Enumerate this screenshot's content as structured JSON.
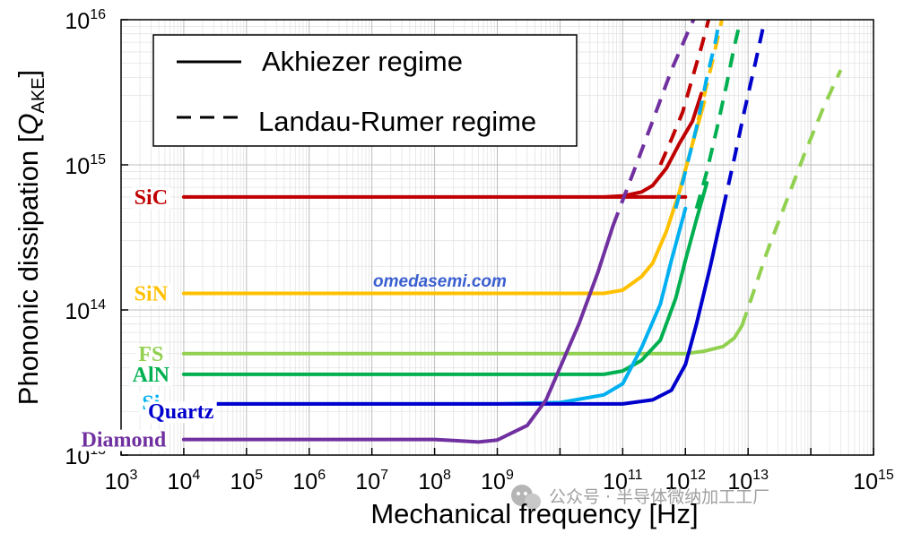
{
  "chart_data": {
    "type": "line",
    "title": "",
    "xlabel": "Mechanical frequency [Hz]",
    "ylabel_main": "Phononic dissipation [",
    "ylabel_q": "Q",
    "ylabel_sub": "AKE",
    "ylabel_close": "]",
    "x_scale": "log",
    "y_scale": "log",
    "xlim": [
      1000,
      1000000000000000
    ],
    "ylim": [
      10000000000000,
      10000000000000000
    ],
    "grid": true,
    "x_ticks": [
      {
        "value": 1000,
        "base": "10",
        "exp": "3"
      },
      {
        "value": 10000,
        "base": "10",
        "exp": "4"
      },
      {
        "value": 100000,
        "base": "10",
        "exp": "5"
      },
      {
        "value": 1000000,
        "base": "10",
        "exp": "6"
      },
      {
        "value": 10000000,
        "base": "10",
        "exp": "7"
      },
      {
        "value": 100000000,
        "base": "10",
        "exp": "8"
      },
      {
        "value": 1000000000,
        "base": "10",
        "exp": "9"
      },
      {
        "value": 100000000000,
        "base": "10",
        "exp": "11"
      },
      {
        "value": 1000000000000,
        "base": "10",
        "exp": "12"
      },
      {
        "value": 10000000000000,
        "base": "10",
        "exp": "13"
      },
      {
        "value": 1000000000000000,
        "base": "10",
        "exp": "15"
      }
    ],
    "y_ticks": [
      {
        "value": 10000000000000,
        "base": "10",
        "exp": "13"
      },
      {
        "value": 100000000000000,
        "base": "10",
        "exp": "14"
      },
      {
        "value": 1000000000000000,
        "base": "10",
        "exp": "15"
      },
      {
        "value": 10000000000000000,
        "base": "10",
        "exp": "16"
      }
    ],
    "legend": {
      "position": "top-left",
      "entries": [
        {
          "label": "Akhiezer regime",
          "style": "solid"
        },
        {
          "label": "Landau-Rumer regime",
          "style": "dashed"
        }
      ]
    },
    "series": [
      {
        "name": "SiC",
        "color": "#c00000",
        "label_at": {
          "x": 3000,
          "y": 600000000000000
        },
        "akhiezer": [
          [
            10000,
            600000000000000
          ],
          [
            1000000,
            600000000000000
          ],
          [
            100000000,
            600000000000000
          ],
          [
            1000000000,
            600000000000000
          ],
          [
            1000000000000,
            600000000000000
          ],
          [
            10000000000,
            600000000000000
          ],
          [
            50000000000,
            600000000000000
          ],
          [
            100000000000,
            610000000000000
          ],
          [
            200000000000,
            650000000000000
          ],
          [
            300000000000,
            720000000000000
          ],
          [
            500000000000,
            950000000000000
          ],
          [
            800000000000,
            1400000000000000
          ],
          [
            1300000000000,
            2000000000000000
          ],
          [
            1800000000000,
            3100000000000000
          ]
        ],
        "landau": [
          [
            400000000000,
            1000000000000000
          ],
          [
            600000000000,
            1500000000000000
          ],
          [
            900000000000,
            2300000000000000
          ],
          [
            1300000000000,
            4000000000000000
          ],
          [
            1800000000000,
            6500000000000000
          ],
          [
            2200000000000,
            9000000000000000
          ],
          [
            2600000000000,
            12000000000000000
          ]
        ]
      },
      {
        "name": "SiN",
        "color": "#ffc000",
        "label_at": {
          "x": 3000,
          "y": 130000000000000
        },
        "akhiezer": [
          [
            10000,
            130000000000000
          ],
          [
            1000000,
            130000000000000
          ],
          [
            100000000,
            130000000000000
          ],
          [
            10000000000,
            130000000000000
          ],
          [
            50000000000,
            130000000000000
          ],
          [
            100000000000,
            137000000000000
          ],
          [
            200000000000,
            170000000000000
          ],
          [
            300000000000,
            210000000000000
          ],
          [
            500000000000,
            350000000000000
          ],
          [
            800000000000,
            650000000000000
          ],
          [
            1300000000000,
            1400000000000000
          ],
          [
            2000000000000,
            2700000000000000
          ]
        ],
        "landau": [
          [
            1300000000000,
            1400000000000000
          ],
          [
            1800000000000,
            2500000000000000
          ],
          [
            2500000000000,
            4500000000000000
          ],
          [
            3400000000000,
            8000000000000000
          ],
          [
            4200000000000,
            12000000000000000
          ]
        ]
      },
      {
        "name": "FS",
        "color": "#92d050",
        "label_at": {
          "x": 3000,
          "y": 50000000000000
        },
        "akhiezer": [
          [
            10000,
            50000000000000
          ],
          [
            1000000,
            50000000000000
          ],
          [
            100000000,
            50000000000000
          ],
          [
            10000000000,
            50000000000000
          ],
          [
            100000000000,
            50000000000000
          ],
          [
            1000000000000,
            50000000000000
          ],
          [
            2000000000000,
            52000000000000
          ],
          [
            4000000000000,
            56000000000000
          ],
          [
            6000000000000,
            64000000000000
          ],
          [
            8000000000000,
            78000000000000
          ]
        ],
        "landau": [
          [
            8000000000000,
            78000000000000
          ],
          [
            12000000000000,
            130000000000000
          ],
          [
            20000000000000,
            250000000000000
          ],
          [
            40000000000000,
            550000000000000
          ],
          [
            80000000000000,
            1200000000000000
          ],
          [
            160000000000000,
            2500000000000000
          ],
          [
            300000000000000,
            4500000000000000
          ]
        ]
      },
      {
        "name": "AlN",
        "color": "#00b050",
        "label_at": {
          "x": 3000,
          "y": 36000000000000
        },
        "akhiezer": [
          [
            10000,
            36000000000000
          ],
          [
            1000000,
            36000000000000
          ],
          [
            100000000,
            36000000000000
          ],
          [
            10000000000,
            36000000000000
          ],
          [
            50000000000,
            36000000000000
          ],
          [
            100000000000,
            38000000000000
          ],
          [
            200000000000,
            45000000000000
          ],
          [
            400000000000,
            62000000000000
          ],
          [
            700000000000,
            120000000000000
          ],
          [
            1000000000000,
            220000000000000
          ],
          [
            1500000000000,
            420000000000000
          ],
          [
            2200000000000,
            750000000000000
          ]
        ],
        "landau": [
          [
            1500000000000,
            500000000000000
          ],
          [
            2200000000000,
            900000000000000
          ],
          [
            3200000000000,
            1800000000000000
          ],
          [
            4500000000000,
            3500000000000000
          ],
          [
            6000000000000,
            6500000000000000
          ],
          [
            8000000000000,
            11000000000000000
          ]
        ]
      },
      {
        "name": "Si",
        "color": "#00b0f0",
        "label_at": {
          "x": 3000,
          "y": 23000000000000
        },
        "akhiezer": [
          [
            10000,
            22500000000000
          ],
          [
            1000000,
            22500000000000
          ],
          [
            100000000,
            22500000000000
          ],
          [
            1000000000,
            22500000000000
          ],
          [
            10000000000,
            23000000000000
          ],
          [
            50000000000,
            26000000000000
          ],
          [
            100000000000,
            31000000000000
          ],
          [
            200000000000,
            55000000000000
          ],
          [
            400000000000,
            110000000000000
          ],
          [
            600000000000,
            220000000000000
          ],
          [
            1000000000000,
            500000000000000
          ]
        ],
        "landau": [
          [
            700000000000,
            500000000000000
          ],
          [
            1000000000000,
            900000000000000
          ],
          [
            1500000000000,
            1800000000000000
          ],
          [
            2200000000000,
            4000000000000000
          ],
          [
            3000000000000,
            7000000000000000
          ],
          [
            3800000000000,
            12000000000000000
          ]
        ]
      },
      {
        "name": "Quartz",
        "color": "#0000cc",
        "label_at": {
          "x": 9000,
          "y": 20000000000000
        },
        "akhiezer": [
          [
            10000,
            22500000000000
          ],
          [
            1000000,
            22500000000000
          ],
          [
            100000000,
            22500000000000
          ],
          [
            10000000000,
            22500000000000
          ],
          [
            100000000000,
            22500000000000
          ],
          [
            300000000000,
            24000000000000
          ],
          [
            600000000000,
            28000000000000
          ],
          [
            1000000000000,
            42000000000000
          ],
          [
            1500000000000,
            80000000000000
          ],
          [
            2500000000000,
            200000000000000
          ],
          [
            4000000000000,
            500000000000000
          ]
        ],
        "landau": [
          [
            4000000000000,
            500000000000000
          ],
          [
            6000000000000,
            1100000000000000
          ],
          [
            9000000000000,
            2500000000000000
          ],
          [
            13000000000000,
            5000000000000000
          ],
          [
            17000000000000,
            8500000000000000
          ],
          [
            22000000000000,
            13000000000000000
          ]
        ]
      },
      {
        "name": "Diamond",
        "color": "#7030a0",
        "label_at": {
          "x": 1100,
          "y": 12800000000000
        },
        "akhiezer": [
          [
            10000,
            12800000000000
          ],
          [
            1000000,
            12800000000000
          ],
          [
            100000000,
            12800000000000
          ],
          [
            200000000,
            12600000000000
          ],
          [
            500000000,
            12300000000000
          ],
          [
            1000000000,
            12700000000000
          ],
          [
            3000000000,
            16000000000000
          ],
          [
            6000000000,
            24000000000000
          ],
          [
            10000000000,
            40000000000000
          ],
          [
            20000000000,
            80000000000000
          ],
          [
            40000000000,
            180000000000000
          ],
          [
            70000000000,
            380000000000000
          ]
        ],
        "landau": [
          [
            70000000000,
            380000000000000
          ],
          [
            150000000000,
            900000000000000
          ],
          [
            300000000000,
            2000000000000000
          ],
          [
            600000000000,
            4500000000000000
          ],
          [
            1200000000000,
            9000000000000000
          ],
          [
            1800000000000,
            13000000000000000
          ]
        ]
      }
    ]
  },
  "watermark": {
    "site": "omedasemi.com",
    "channel": "公众号 · 半导体微纳加工工厂"
  }
}
